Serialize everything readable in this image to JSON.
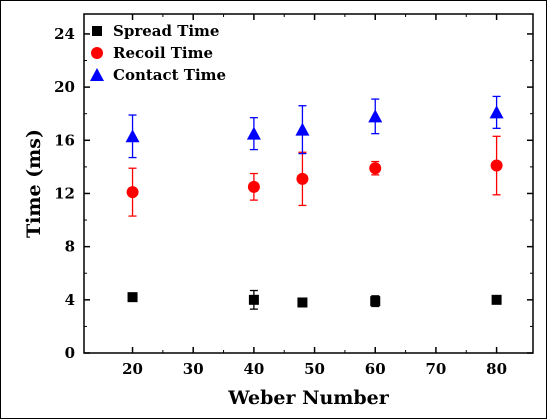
{
  "chart_data": {
    "type": "scatter",
    "xlabel": "Weber Number",
    "ylabel": "Time (ms)",
    "xlim": [
      12,
      86
    ],
    "ylim": [
      0,
      25.5
    ],
    "xticks": [
      20,
      30,
      40,
      50,
      60,
      70,
      80
    ],
    "yticks": [
      0,
      4,
      8,
      12,
      16,
      20,
      24
    ],
    "legend_position": "top-left",
    "series": [
      {
        "name": "Spread Time",
        "marker": "square",
        "color": "#000000",
        "x": [
          20,
          40,
          48,
          60,
          80
        ],
        "y": [
          4.2,
          4.0,
          3.8,
          3.9,
          4.0
        ],
        "err": [
          0.2,
          0.7,
          0.3,
          0.4,
          0.2
        ]
      },
      {
        "name": "Recoil Time",
        "marker": "circle",
        "color": "#ff0000",
        "x": [
          20,
          40,
          48,
          60,
          80
        ],
        "y": [
          12.1,
          12.5,
          13.1,
          13.9,
          14.1
        ],
        "err": [
          1.8,
          1.0,
          2.0,
          0.5,
          2.2
        ]
      },
      {
        "name": "Contact Time",
        "marker": "triangle",
        "color": "#0000ff",
        "x": [
          20,
          40,
          48,
          60,
          80
        ],
        "y": [
          16.3,
          16.5,
          16.8,
          17.8,
          18.1
        ],
        "err": [
          1.6,
          1.2,
          1.8,
          1.3,
          1.2
        ]
      }
    ]
  }
}
